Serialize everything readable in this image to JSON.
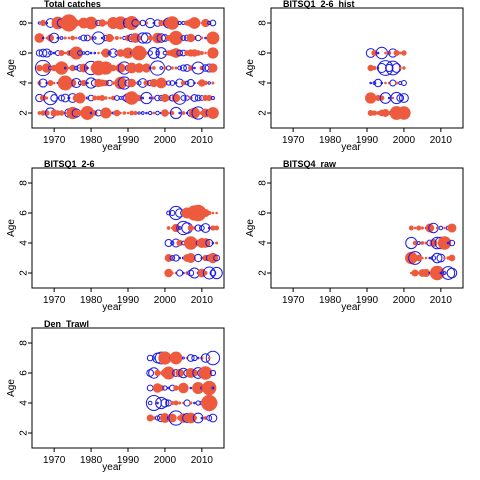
{
  "colors": {
    "positive": "#ee5a3e",
    "negative": "#1a1ae6",
    "frame": "#000000"
  },
  "chart_data": [
    {
      "type": "scatter",
      "title": "Total catches",
      "xlabel": "year",
      "ylabel": "Age",
      "xlim": [
        1964,
        2016
      ],
      "ylim": [
        1,
        9
      ],
      "xticks": [
        1970,
        1980,
        1990,
        2000,
        2010
      ],
      "yticks": [
        2,
        4,
        6,
        8
      ],
      "bubbles": {
        "x_start": 1966,
        "x_end": 2013,
        "ages": [
          2,
          3,
          4,
          5,
          6,
          7,
          8
        ],
        "pattern": "residuals"
      }
    },
    {
      "type": "scatter",
      "title": "BITSQ1_2-6_hist",
      "xlabel": "year",
      "ylabel": "Age",
      "xlim": [
        1964,
        2016
      ],
      "ylim": [
        1,
        9
      ],
      "xticks": [
        1970,
        1980,
        1990,
        2000,
        2010
      ],
      "yticks": [
        2,
        4,
        6,
        8
      ],
      "bubbles": {
        "x_start": 1991,
        "x_end": 2000,
        "ages": [
          2,
          3,
          4,
          5,
          6
        ],
        "pattern": "residuals"
      }
    },
    {
      "type": "scatter",
      "title": "BITSQ1_2-6",
      "xlabel": "year",
      "ylabel": "Age",
      "xlim": [
        1964,
        2016
      ],
      "ylim": [
        1,
        9
      ],
      "xticks": [
        1970,
        1980,
        1990,
        2000,
        2010
      ],
      "yticks": [
        2,
        4,
        6,
        8
      ],
      "bubbles": {
        "x_start": 2001,
        "x_end": 2014,
        "ages": [
          2,
          3,
          4,
          5,
          6
        ],
        "pattern": "residuals"
      }
    },
    {
      "type": "scatter",
      "title": "BITSQ4_raw",
      "xlabel": "year",
      "ylabel": "Age",
      "xlim": [
        1964,
        2016
      ],
      "ylim": [
        1,
        9
      ],
      "xticks": [
        1970,
        1980,
        1990,
        2000,
        2010
      ],
      "yticks": [
        2,
        4,
        6,
        8
      ],
      "bubbles": {
        "x_start": 2002,
        "x_end": 2013,
        "ages": [
          2,
          3,
          4,
          5
        ],
        "pattern": "residuals"
      }
    },
    {
      "type": "scatter",
      "title": "Den_Trawl",
      "xlabel": "year",
      "ylabel": "Age",
      "xlim": [
        1964,
        2016
      ],
      "ylim": [
        1,
        9
      ],
      "xticks": [
        1970,
        1980,
        1990,
        2000,
        2010
      ],
      "yticks": [
        2,
        4,
        6,
        8
      ],
      "bubbles": {
        "x_start": 1996,
        "x_end": 2013,
        "ages": [
          3,
          4,
          5,
          6,
          7
        ],
        "pattern": "residuals"
      }
    }
  ]
}
